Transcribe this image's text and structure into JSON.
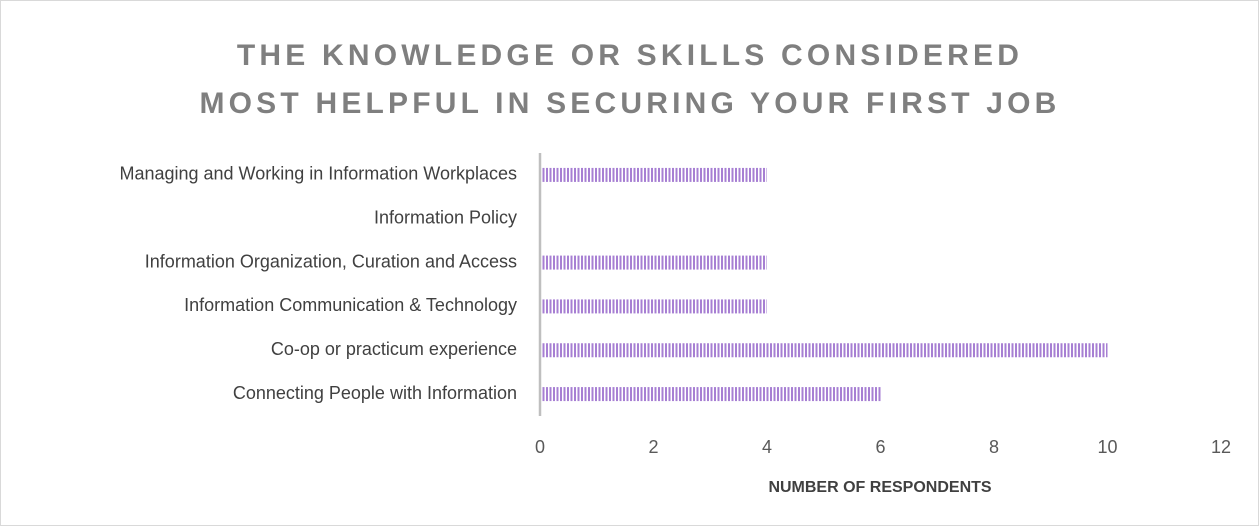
{
  "chart_data": {
    "type": "bar",
    "orientation": "horizontal",
    "title": "THE KNOWLEDGE OR SKILLS CONSIDERED MOST HELPFUL IN SECURING YOUR FIRST JOB",
    "x_label": "NUMBER OF RESPONDENTS",
    "categories": [
      "Managing and Working in Information Workplaces",
      "Information Policy",
      "Information Organization, Curation and Access",
      "Information Communication & Technology",
      "Co-op or practicum experience",
      "Connecting People with Information"
    ],
    "values": [
      4,
      0,
      4,
      4,
      10,
      6
    ],
    "color": "#a77fd3",
    "xlim": [
      0,
      12
    ],
    "xticks": [
      0,
      2,
      4,
      6,
      8,
      10,
      12
    ],
    "grid": false
  }
}
